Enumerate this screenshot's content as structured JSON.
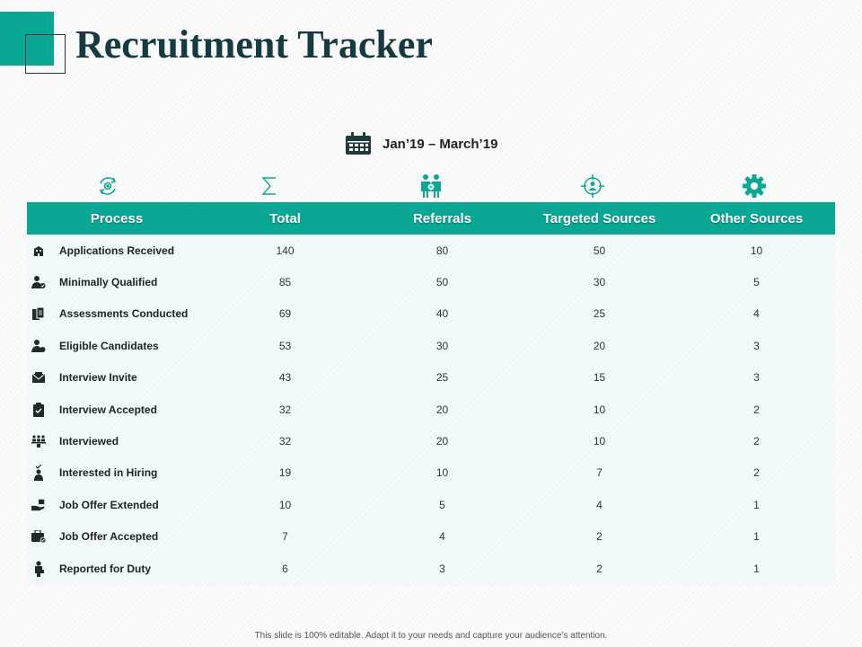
{
  "slide": {
    "title": "Recruitment Tracker",
    "date_range": "Jan’19 – March’19",
    "footer": "This slide is 100% editable. Adapt it to your needs and capture your audience’s attention."
  },
  "table": {
    "headers": [
      "Process",
      "Total",
      "Referrals",
      "Targeted Sources",
      "Other Sources"
    ],
    "header_icons": [
      "process-cycle-icon",
      "sigma-icon",
      "couple-icon",
      "target-person-icon",
      "gear-icon"
    ],
    "rows": [
      {
        "icon": "building-icon",
        "process": "Applications  Received",
        "values": [
          "140",
          "80",
          "50",
          "10"
        ]
      },
      {
        "icon": "user-check-icon",
        "process": "Minimally  Qualified",
        "values": [
          "85",
          "50",
          "30",
          "5"
        ]
      },
      {
        "icon": "documents-icon",
        "process": "Assessments Conducted",
        "values": [
          "69",
          "40",
          "25",
          "4"
        ]
      },
      {
        "icon": "user-badge-icon",
        "process": "Eligible  Candidates",
        "values": [
          "53",
          "30",
          "20",
          "3"
        ]
      },
      {
        "icon": "envelope-icon",
        "process": "Interview Invite",
        "values": [
          "43",
          "25",
          "15",
          "3"
        ]
      },
      {
        "icon": "clipboard-check-icon",
        "process": "Interview Accepted",
        "values": [
          "32",
          "20",
          "10",
          "2"
        ]
      },
      {
        "icon": "group-icon",
        "process": "Interviewed",
        "values": [
          "32",
          "20",
          "10",
          "2"
        ]
      },
      {
        "icon": "person-check-icon",
        "process": "Interested in Hiring",
        "values": [
          "19",
          "10",
          "7",
          "2"
        ]
      },
      {
        "icon": "hand-offer-icon",
        "process": "Job Offer Extended",
        "values": [
          "10",
          "5",
          "4",
          "1"
        ]
      },
      {
        "icon": "briefcase-check-icon",
        "process": "Job Offer Accepted",
        "values": [
          "7",
          "4",
          "2",
          "1"
        ]
      },
      {
        "icon": "businessman-icon",
        "process": "Reported for Duty",
        "values": [
          "6",
          "3",
          "2",
          "1"
        ]
      }
    ]
  },
  "colors": {
    "accent": "#0aa894",
    "title": "#153a40",
    "table_body": "#eef8fa"
  }
}
